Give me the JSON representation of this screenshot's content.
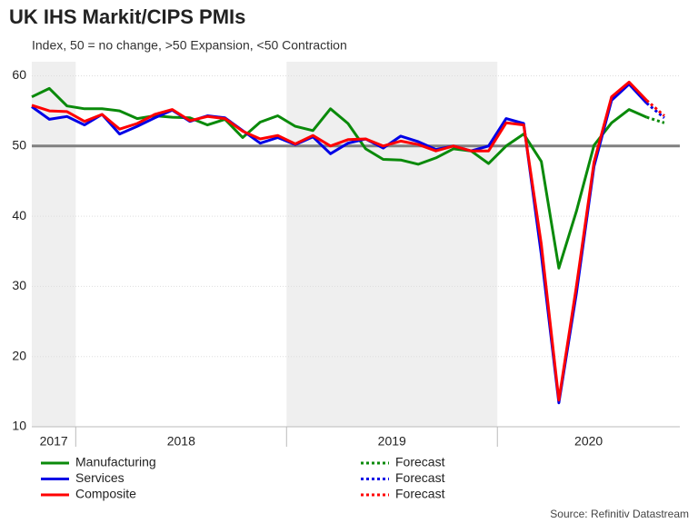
{
  "chart_data": {
    "type": "line",
    "title": "UK IHS Markit/CIPS PMIs",
    "subtitle": "Index, 50 = no change, >50 Expansion, <50 Contraction",
    "source": "Source: Refinitiv Datastream",
    "categories": [
      "2017",
      "2017",
      "2017",
      "2018",
      "2018",
      "2018",
      "2018",
      "2018",
      "2018",
      "2018",
      "2018",
      "2018",
      "2018",
      "2018",
      "2018",
      "2019",
      "2019",
      "2019",
      "2019",
      "2019",
      "2019",
      "2019",
      "2019",
      "2019",
      "2019",
      "2019",
      "2019",
      "2020",
      "2020",
      "2020",
      "2020",
      "2020",
      "2020",
      "2020",
      "2020",
      "2020",
      "2020"
    ],
    "ylim": [
      10,
      62
    ],
    "yticks": [
      10,
      20,
      30,
      40,
      50,
      60
    ],
    "grid": true,
    "reference_line": 50,
    "alternate_shading": true,
    "series": [
      {
        "name": "Manufacturing",
        "color": "#0a8a0a",
        "dotted": false,
        "values": [
          57.0,
          58.2,
          55.7,
          55.3,
          55.3,
          55.0,
          53.9,
          54.3,
          54.1,
          54.0,
          53.0,
          53.8,
          51.2,
          53.4,
          54.3,
          52.8,
          52.2,
          55.3,
          53.2,
          49.6,
          48.1,
          48.0,
          47.4,
          48.3,
          49.6,
          49.3,
          47.5,
          50.0,
          51.7,
          47.8,
          32.6,
          40.7,
          50.1,
          53.3,
          55.2,
          54.1,
          null
        ]
      },
      {
        "name": "Services",
        "color": "#0000e6",
        "dotted": false,
        "values": [
          55.6,
          53.8,
          54.2,
          53.0,
          54.5,
          51.7,
          52.8,
          54.0,
          55.1,
          53.5,
          54.3,
          54.0,
          52.2,
          50.4,
          51.2,
          50.2,
          51.3,
          48.9,
          50.4,
          51.0,
          49.7,
          51.4,
          50.6,
          49.5,
          50.0,
          49.3,
          50.0,
          53.9,
          53.2,
          34.5,
          13.4,
          29.0,
          47.1,
          56.5,
          58.8,
          56.1,
          null
        ]
      },
      {
        "name": "Composite",
        "color": "#ff0000",
        "dotted": false,
        "values": [
          55.8,
          55.0,
          54.9,
          53.5,
          54.5,
          52.4,
          53.2,
          54.5,
          55.2,
          53.6,
          54.2,
          53.9,
          52.1,
          51.0,
          51.5,
          50.3,
          51.5,
          50.0,
          50.9,
          51.0,
          50.0,
          50.7,
          50.2,
          49.3,
          50.0,
          49.3,
          49.3,
          53.3,
          53.0,
          36.0,
          13.8,
          30.0,
          47.7,
          57.0,
          59.1,
          56.5,
          null
        ]
      },
      {
        "name": "Forecast",
        "color": "#0a8a0a",
        "dotted": true,
        "values": [
          null,
          null,
          null,
          null,
          null,
          null,
          null,
          null,
          null,
          null,
          null,
          null,
          null,
          null,
          null,
          null,
          null,
          null,
          null,
          null,
          null,
          null,
          null,
          null,
          null,
          null,
          null,
          null,
          null,
          null,
          null,
          null,
          null,
          null,
          null,
          54.1,
          53.3
        ]
      },
      {
        "name": "Forecast",
        "color": "#0000e6",
        "dotted": true,
        "values": [
          null,
          null,
          null,
          null,
          null,
          null,
          null,
          null,
          null,
          null,
          null,
          null,
          null,
          null,
          null,
          null,
          null,
          null,
          null,
          null,
          null,
          null,
          null,
          null,
          null,
          null,
          null,
          null,
          null,
          null,
          null,
          null,
          null,
          null,
          null,
          56.1,
          54.0
        ]
      },
      {
        "name": "Forecast",
        "color": "#ff0000",
        "dotted": true,
        "values": [
          null,
          null,
          null,
          null,
          null,
          null,
          null,
          null,
          null,
          null,
          null,
          null,
          null,
          null,
          null,
          null,
          null,
          null,
          null,
          null,
          null,
          null,
          null,
          null,
          null,
          null,
          null,
          null,
          null,
          null,
          null,
          null,
          null,
          null,
          null,
          56.5,
          54.3
        ]
      }
    ]
  }
}
